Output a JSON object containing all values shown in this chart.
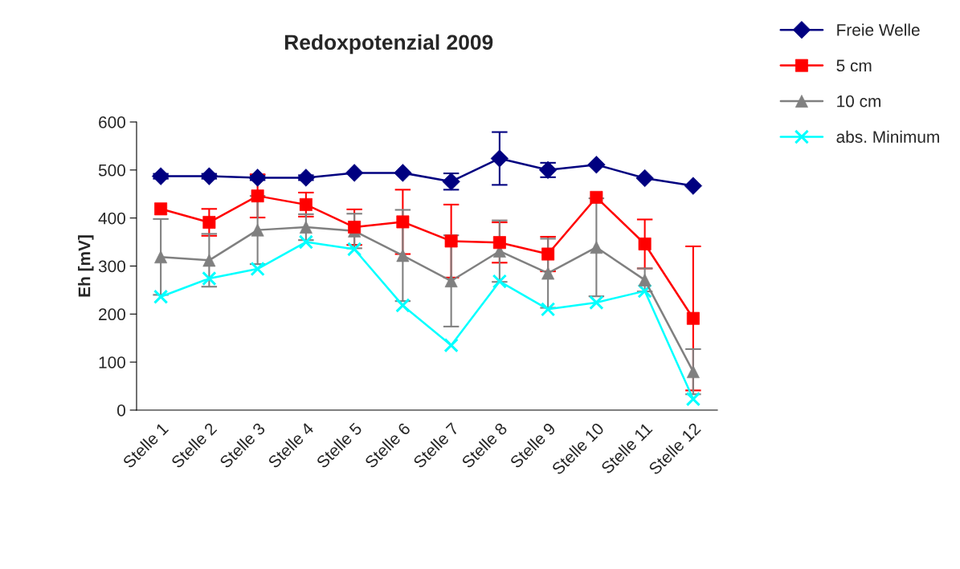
{
  "chart_data": {
    "type": "line",
    "title": "Redoxpotenzial 2009",
    "ylabel": "Eh [mV]",
    "categories": [
      "Stelle 1",
      "Stelle 2",
      "Stelle 3",
      "Stelle 4",
      "Stelle 5",
      "Stelle 6",
      "Stelle 7",
      "Stelle 8",
      "Stelle 9",
      "Stelle 10",
      "Stelle 11",
      "Stelle 12"
    ],
    "series": [
      {
        "name": "Freie Welle",
        "color": "#000080",
        "marker": "diamond",
        "values": [
          487,
          487,
          484,
          484,
          494,
          494,
          476,
          524,
          500,
          511,
          483,
          467
        ],
        "errors": [
          5,
          5,
          5,
          5,
          null,
          null,
          17,
          55,
          15,
          null,
          null,
          null
        ]
      },
      {
        "name": "5 cm",
        "color": "#ff0000",
        "marker": "square",
        "values": [
          419,
          391,
          446,
          428,
          381,
          392,
          352,
          349,
          325,
          443,
          346,
          191
        ],
        "errors": [
          null,
          28,
          45,
          25,
          37,
          67,
          76,
          42,
          36,
          null,
          51,
          150
        ]
      },
      {
        "name": "10 cm",
        "color": "#808080",
        "marker": "triangle",
        "values": [
          319,
          312,
          375,
          381,
          373,
          322,
          269,
          331,
          285,
          339,
          271,
          80
        ],
        "errors": [
          79,
          55,
          71,
          27,
          36,
          95,
          95,
          64,
          72,
          102,
          24,
          47
        ]
      },
      {
        "name": "abs. Minimum",
        "color": "#00ffff",
        "marker": "cross",
        "values": [
          236,
          274,
          294,
          350,
          335,
          218,
          135,
          268,
          210,
          224,
          248,
          23
        ]
      }
    ],
    "ylim": [
      0,
      600
    ],
    "yticks": [
      0,
      100,
      200,
      300,
      400,
      500,
      600
    ],
    "grid": false,
    "legend": "top right"
  }
}
